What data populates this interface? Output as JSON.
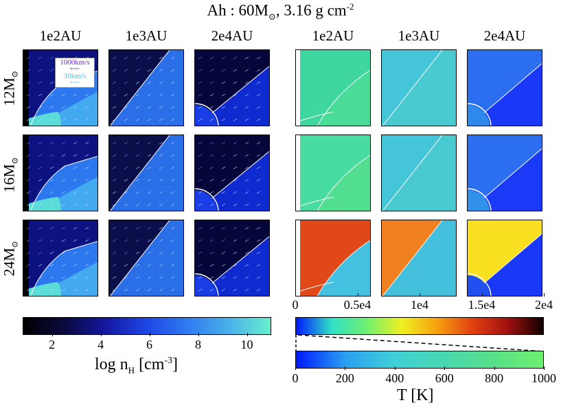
{
  "figure": {
    "title_prefix": "Ah : 60M",
    "title_suffix": ", 3.16 g cm",
    "title_exp": "-2",
    "col_labels": [
      "1e2AU",
      "1e3AU",
      "2e4AU",
      "1e2AU",
      "1e3AU",
      "2e4AU"
    ],
    "row_labels": [
      "12M",
      "16M",
      "24M"
    ],
    "sun_symbol": "⊙",
    "legend": {
      "fast": "1000km/s",
      "slow": "30km/s"
    }
  },
  "chart_data": [
    {
      "type": "heatmap",
      "name": "density panels",
      "quantity": "log n_H",
      "rows": [
        "12M⊙",
        "16M⊙",
        "24M⊙"
      ],
      "cols": [
        "1e2AU",
        "1e3AU",
        "2e4AU"
      ],
      "colorbar": {
        "label_main": "log n",
        "label_sub": "H",
        "label_unit": " [cm",
        "label_exp": "-3",
        "label_close": "]",
        "range": [
          0.8,
          11
        ],
        "ticks": [
          "2",
          "4",
          "6",
          "8",
          "10"
        ],
        "tick_values": [
          2,
          4,
          6,
          8,
          10
        ],
        "colors": [
          "#000000",
          "#0a0a40",
          "#1418a0",
          "#1e46e6",
          "#2f7cf0",
          "#4ab0ea",
          "#66f0cc"
        ]
      }
    },
    {
      "type": "heatmap",
      "name": "temperature panels",
      "quantity": "T [K]",
      "rows": [
        "12M⊙",
        "16M⊙",
        "24M⊙"
      ],
      "cols": [
        "1e2AU",
        "1e3AU",
        "2e4AU"
      ],
      "colorbar_top": {
        "range": [
          0,
          20000
        ],
        "ticks": [
          "0",
          "0.5e4",
          "1e4",
          "1.5e4",
          "2e4"
        ],
        "tick_values": [
          0,
          5000,
          10000,
          15000,
          20000
        ],
        "colors": [
          "#0018ff",
          "#30e0c8",
          "#6ef070",
          "#f0f020",
          "#f8a010",
          "#e04010",
          "#a01010",
          "#100000"
        ]
      },
      "colorbar_bottom": {
        "label": "T [K]",
        "range": [
          0,
          1000
        ],
        "ticks": [
          "0",
          "200",
          "400",
          "600",
          "800",
          "1000"
        ],
        "tick_values": [
          0,
          200,
          400,
          600,
          800,
          1000
        ],
        "colors": [
          "#0018ff",
          "#2aa0f0",
          "#40d0d8",
          "#48d8b0",
          "#58e088",
          "#6ef070"
        ]
      }
    }
  ]
}
